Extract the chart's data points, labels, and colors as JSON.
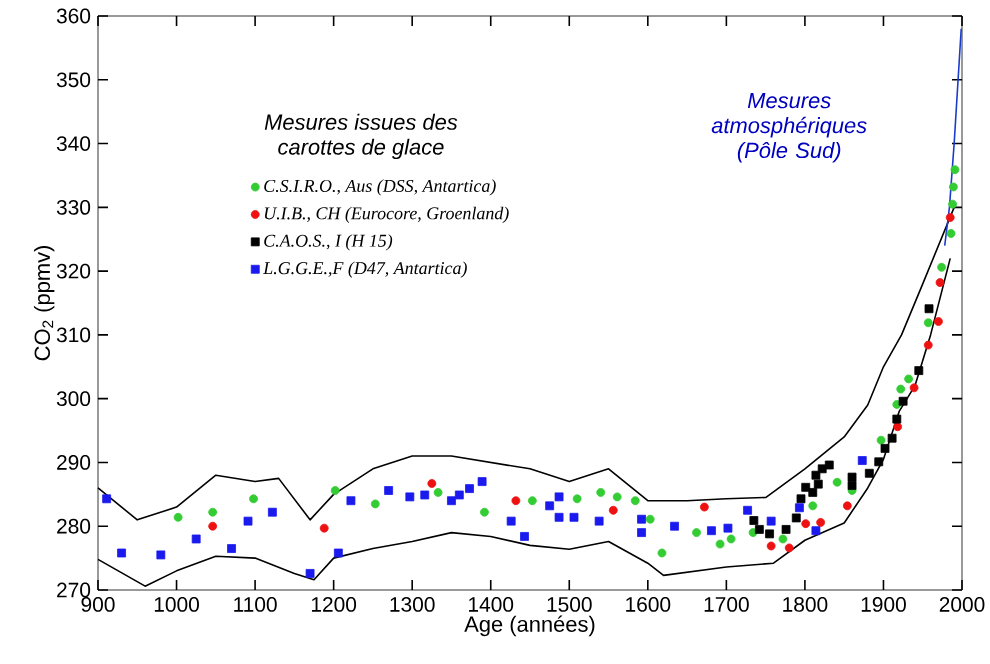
{
  "chart_data": {
    "type": "scatter",
    "xlabel": "Age (années)",
    "ylabel": "CO$_{2}$ (ppmv)",
    "legend_title": "Mesures issues des carottes de glace",
    "legend": "top left",
    "xlim": [
      900,
      2000
    ],
    "ylim": [
      270,
      360
    ],
    "xticks": [
      900,
      1000,
      1100,
      1200,
      1300,
      1400,
      1500,
      1600,
      1700,
      1800,
      1900,
      2000
    ],
    "yticks": [
      270,
      280,
      290,
      300,
      310,
      320,
      330,
      340,
      350,
      360
    ],
    "series": [
      {
        "name": "C.S.I.R.O., Aus (DSS, Antartica)",
        "marker": "circle",
        "color": "#33cc33",
        "x": [
          1002,
          1046,
          1098,
          1202,
          1253,
          1333,
          1392,
          1453,
          1510,
          1540,
          1561,
          1584,
          1603,
          1618,
          1662,
          1692,
          1706,
          1734,
          1772,
          1810,
          1841,
          1860,
          1897,
          1917,
          1922,
          1932,
          1957,
          1974,
          1986,
          1988,
          1989,
          1991
        ],
        "values": [
          281.4,
          282.2,
          284.3,
          285.6,
          283.5,
          285.3,
          282.2,
          284,
          284.3,
          285.3,
          284.6,
          284,
          281.1,
          275.8,
          279,
          277.2,
          278,
          279,
          278,
          283.2,
          286.9,
          285.6,
          293.5,
          299.1,
          301.5,
          303.1,
          311.9,
          320.6,
          325.9,
          330.5,
          333.2,
          335.9
        ]
      },
      {
        "name": "U.I.B., CH (Eurocore, Groenland)",
        "marker": "circle",
        "color": "#ee1111",
        "x": [
          1046,
          1188,
          1325,
          1432,
          1556,
          1672,
          1757,
          1780,
          1801,
          1820,
          1854,
          1918,
          1939,
          1957,
          1970,
          1972,
          1985
        ],
        "values": [
          280,
          279.7,
          286.7,
          284,
          282.5,
          283,
          276.9,
          276.6,
          280.4,
          280.6,
          283.2,
          295.6,
          301.7,
          308.4,
          312.1,
          318.2,
          328.4
        ]
      },
      {
        "name": "C.A.O.S., I (H 15)",
        "marker": "square",
        "color": "#000000",
        "x": [
          1735,
          1742,
          1755,
          1776,
          1789,
          1795,
          1801,
          1810,
          1814,
          1817,
          1822,
          1831,
          1860,
          1860,
          1882,
          1894,
          1902,
          1911,
          1917,
          1925,
          1945,
          1958
        ],
        "values": [
          280.9,
          279.5,
          278.8,
          279.5,
          281.3,
          284.3,
          286.1,
          285.3,
          288,
          286.6,
          289,
          289.6,
          287.7,
          286.4,
          288.3,
          290.1,
          292.2,
          293.8,
          296.8,
          299.6,
          304.4,
          314.1
        ]
      },
      {
        "name": "L.G.G.E.,F (D47, Antartica)",
        "marker": "square",
        "color": "#1a1aee",
        "x": [
          911,
          930,
          980,
          1025,
          1070,
          1091,
          1122,
          1170,
          1206,
          1222,
          1270,
          1297,
          1316,
          1350,
          1360,
          1373,
          1389,
          1426,
          1443,
          1475,
          1487,
          1487,
          1506,
          1538,
          1592,
          1592,
          1634,
          1681,
          1702,
          1727,
          1757,
          1793,
          1814,
          1873
        ],
        "values": [
          284.3,
          275.8,
          275.5,
          278,
          276.5,
          280.8,
          282.2,
          272.6,
          275.8,
          284,
          285.6,
          284.6,
          284.9,
          284,
          284.9,
          285.9,
          287,
          280.8,
          278.4,
          283.2,
          284.6,
          281.4,
          281.4,
          280.8,
          281.1,
          279,
          280,
          279.3,
          279.7,
          282.5,
          280.8,
          282.9,
          279.3,
          290.3
        ]
      },
      {
        "type": "line",
        "marker": "none",
        "line_style": "solid",
        "color": "#000000",
        "x": [
          900,
          950,
          1000,
          1050,
          1100,
          1130,
          1170,
          1200,
          1250,
          1300,
          1350,
          1400,
          1450,
          1500,
          1550,
          1600,
          1650,
          1700,
          1750,
          1800,
          1850,
          1880,
          1900,
          1923,
          1950,
          1990
        ],
        "values": [
          286,
          281,
          283,
          288,
          287,
          287.5,
          281,
          285,
          289,
          291,
          291,
          290,
          289,
          287,
          289,
          284,
          284,
          284.3,
          284.5,
          289,
          294,
          299,
          305,
          310,
          318,
          330
        ]
      },
      {
        "type": "line",
        "marker": "none",
        "line_style": "solid",
        "color": "#000000",
        "x": [
          900,
          960,
          1000,
          1050,
          1100,
          1150,
          1175,
          1200,
          1250,
          1300,
          1350,
          1400,
          1450,
          1500,
          1550,
          1600,
          1620,
          1700,
          1760,
          1800,
          1850,
          1880,
          1900,
          1920,
          1940,
          1960,
          1985
        ],
        "values": [
          274.8,
          270.6,
          273,
          275.3,
          275,
          272.6,
          271.6,
          275,
          276.5,
          277.6,
          279,
          278.4,
          277,
          276.4,
          277.6,
          274.2,
          272.3,
          273.6,
          274.2,
          277.8,
          280.5,
          286,
          290.5,
          298,
          302,
          310,
          322
        ]
      },
      {
        "type": "line",
        "marker": "none",
        "line_style": "solid",
        "color": "#1a3ccc",
        "x": [
          1978,
          1984,
          1990,
          1995,
          1999
        ],
        "values": [
          324,
          330,
          340,
          350,
          358
        ]
      }
    ],
    "annotations": [
      "Mesures atmosphériques (Pôle Sud)"
    ]
  }
}
